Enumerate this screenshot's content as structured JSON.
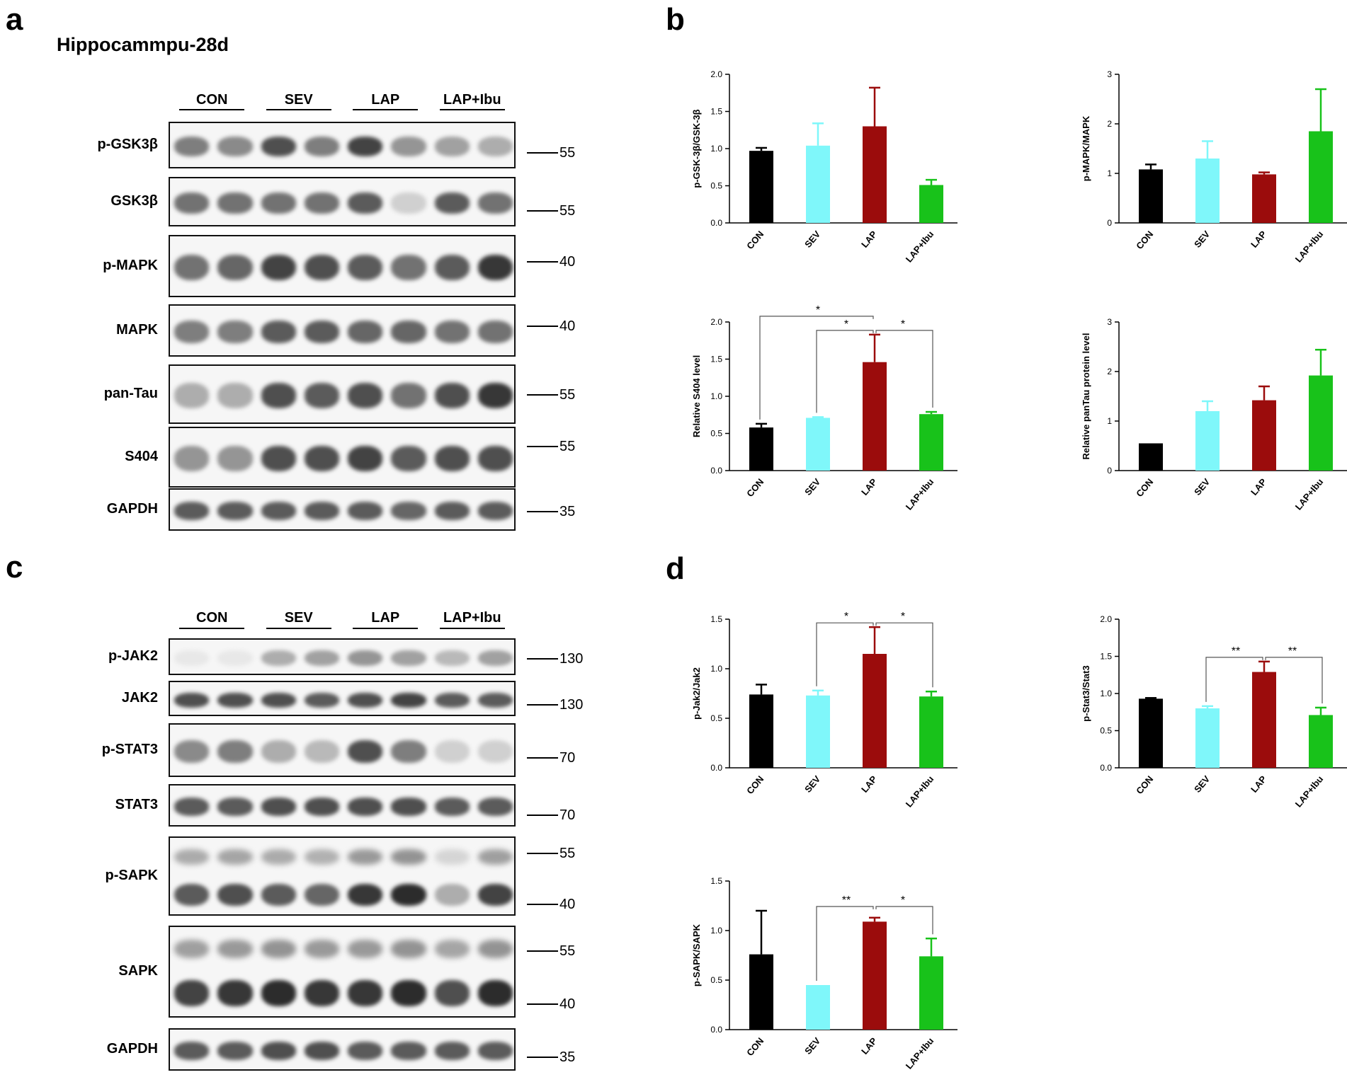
{
  "panels": {
    "a": {
      "letter": "a",
      "title": "Hippocammpu-28d",
      "groups": [
        "CON",
        "SEV",
        "LAP",
        "LAP+Ibu"
      ],
      "rows": [
        {
          "label": "p-GSK3β",
          "mw": [
            "55"
          ],
          "bands": [
            0.55,
            0.5,
            0.75,
            0.55,
            0.8,
            0.45,
            0.4,
            0.35
          ]
        },
        {
          "label": "GSK3β",
          "mw": [
            "55"
          ],
          "bands": [
            0.6,
            0.6,
            0.6,
            0.6,
            0.7,
            0.2,
            0.7,
            0.6
          ]
        },
        {
          "label": "p-MAPK",
          "mw": [
            "40"
          ],
          "bands": [
            0.6,
            0.65,
            0.8,
            0.75,
            0.7,
            0.6,
            0.7,
            0.85
          ]
        },
        {
          "label": "MAPK",
          "mw": [
            "40"
          ],
          "bands": [
            0.55,
            0.55,
            0.7,
            0.7,
            0.65,
            0.65,
            0.6,
            0.6
          ]
        },
        {
          "label": "pan-Tau",
          "mw": [
            "55"
          ],
          "bands": [
            0.35,
            0.35,
            0.75,
            0.7,
            0.75,
            0.6,
            0.75,
            0.85
          ]
        },
        {
          "label": "S404",
          "mw": [
            "55"
          ],
          "bands": [
            0.45,
            0.45,
            0.75,
            0.75,
            0.8,
            0.7,
            0.75,
            0.75
          ]
        },
        {
          "label": "GAPDH",
          "mw": [
            "35"
          ],
          "bands": [
            0.7,
            0.7,
            0.7,
            0.7,
            0.7,
            0.65,
            0.7,
            0.7
          ]
        }
      ]
    },
    "b": {
      "letter": "b"
    },
    "c": {
      "letter": "c",
      "groups": [
        "CON",
        "SEV",
        "LAP",
        "LAP+Ibu"
      ],
      "rows": [
        {
          "label": "p-JAK2",
          "mw": [
            "130"
          ],
          "bands": [
            0.1,
            0.1,
            0.35,
            0.4,
            0.45,
            0.4,
            0.3,
            0.4
          ]
        },
        {
          "label": "JAK2",
          "mw": [
            "130"
          ],
          "bands": [
            0.75,
            0.75,
            0.75,
            0.7,
            0.75,
            0.8,
            0.7,
            0.7
          ]
        },
        {
          "label": "p-STAT3",
          "mw": [
            "70"
          ],
          "bands": [
            0.5,
            0.55,
            0.35,
            0.3,
            0.75,
            0.55,
            0.2,
            0.2
          ]
        },
        {
          "label": "STAT3",
          "mw": [
            "70"
          ],
          "bands": [
            0.7,
            0.7,
            0.75,
            0.75,
            0.75,
            0.75,
            0.7,
            0.7
          ]
        },
        {
          "label": "p-SAPK",
          "mw": [
            "55",
            "40"
          ],
          "bands": [
            0.7,
            0.75,
            0.7,
            0.65,
            0.85,
            0.9,
            0.35,
            0.8
          ]
        },
        {
          "label": "SAPK",
          "mw": [
            "55",
            "40"
          ],
          "bands": [
            0.8,
            0.85,
            0.9,
            0.85,
            0.85,
            0.9,
            0.75,
            0.9
          ]
        },
        {
          "label": "GAPDH",
          "mw": [
            "35"
          ],
          "bands": [
            0.7,
            0.7,
            0.75,
            0.75,
            0.7,
            0.7,
            0.7,
            0.7
          ]
        }
      ]
    },
    "d": {
      "letter": "d"
    }
  },
  "chart_data": [
    {
      "id": "b1",
      "type": "bar",
      "ylabel": "p-GSK-3β/GSK-3β",
      "categories": [
        "CON",
        "SEV",
        "LAP",
        "LAP+Ibu"
      ],
      "values": [
        0.97,
        1.04,
        1.3,
        0.51
      ],
      "errors": [
        0.04,
        0.3,
        0.52,
        0.07
      ],
      "ylim": [
        0,
        2.0
      ],
      "yticks": [
        "0.0",
        "0.5",
        "1.0",
        "1.5",
        "2.0"
      ],
      "significance": []
    },
    {
      "id": "b2",
      "type": "bar",
      "ylabel": "p-MAPK/MAPK",
      "categories": [
        "CON",
        "SEV",
        "LAP",
        "LAP+Ibu"
      ],
      "values": [
        1.08,
        1.3,
        0.98,
        1.85
      ],
      "errors": [
        0.1,
        0.35,
        0.04,
        0.85
      ],
      "ylim": [
        0,
        3
      ],
      "yticks": [
        "0",
        "1",
        "2",
        "3"
      ],
      "significance": []
    },
    {
      "id": "b3",
      "type": "bar",
      "ylabel": "Relative S404 level",
      "categories": [
        "CON",
        "SEV",
        "LAP",
        "LAP+Ibu"
      ],
      "values": [
        0.58,
        0.71,
        1.46,
        0.76
      ],
      "errors": [
        0.05,
        0.01,
        0.37,
        0.03
      ],
      "ylim": [
        0,
        2.0
      ],
      "yticks": [
        "0.0",
        "0.5",
        "1.0",
        "1.5",
        "2.0"
      ],
      "significance": [
        {
          "from": 0,
          "to": 2,
          "label": "*"
        },
        {
          "from": 1,
          "to": 2,
          "label": "*"
        },
        {
          "from": 2,
          "to": 3,
          "label": "*"
        }
      ]
    },
    {
      "id": "b4",
      "type": "bar",
      "ylabel": "Relative panTau protein level",
      "categories": [
        "CON",
        "SEV",
        "LAP",
        "LAP+Ibu"
      ],
      "values": [
        0.55,
        1.2,
        1.42,
        1.92
      ],
      "errors": [
        0.0,
        0.2,
        0.28,
        0.52
      ],
      "ylim": [
        0,
        3
      ],
      "yticks": [
        "0",
        "1",
        "2",
        "3"
      ],
      "significance": []
    },
    {
      "id": "d1",
      "type": "bar",
      "ylabel": "p-Jak2/Jak2",
      "categories": [
        "CON",
        "SEV",
        "LAP",
        "LAP+Ibu"
      ],
      "values": [
        0.74,
        0.73,
        1.15,
        0.72
      ],
      "errors": [
        0.1,
        0.05,
        0.27,
        0.05
      ],
      "ylim": [
        0,
        1.5
      ],
      "yticks": [
        "0.0",
        "0.5",
        "1.0",
        "1.5"
      ],
      "significance": [
        {
          "from": 1,
          "to": 2,
          "label": "*"
        },
        {
          "from": 2,
          "to": 3,
          "label": "*"
        }
      ]
    },
    {
      "id": "d2",
      "type": "bar",
      "ylabel": "p-Stat3/Stat3",
      "categories": [
        "CON",
        "SEV",
        "LAP",
        "LAP+Ibu"
      ],
      "values": [
        0.93,
        0.8,
        1.29,
        0.71
      ],
      "errors": [
        0.01,
        0.03,
        0.14,
        0.1
      ],
      "ylim": [
        0,
        2.0
      ],
      "yticks": [
        "0.0",
        "0.5",
        "1.0",
        "1.5",
        "2.0"
      ],
      "significance": [
        {
          "from": 1,
          "to": 2,
          "label": "**"
        },
        {
          "from": 2,
          "to": 3,
          "label": "**"
        }
      ]
    },
    {
      "id": "d3",
      "type": "bar",
      "ylabel": "p-SAPK/SAPK",
      "categories": [
        "CON",
        "SEV",
        "LAP",
        "LAP+Ibu"
      ],
      "values": [
        0.76,
        0.45,
        1.09,
        0.74
      ],
      "errors": [
        0.44,
        0.0,
        0.04,
        0.18
      ],
      "ylim": [
        0,
        1.5
      ],
      "yticks": [
        "0.0",
        "0.5",
        "1.0",
        "1.5"
      ],
      "significance": [
        {
          "from": 1,
          "to": 2,
          "label": "**"
        },
        {
          "from": 2,
          "to": 3,
          "label": "*"
        }
      ]
    }
  ],
  "colors": {
    "CON": "#000000",
    "SEV": "#7ff7fa",
    "LAP": "#9b0c0c",
    "LAP+Ibu": "#18c21a"
  }
}
